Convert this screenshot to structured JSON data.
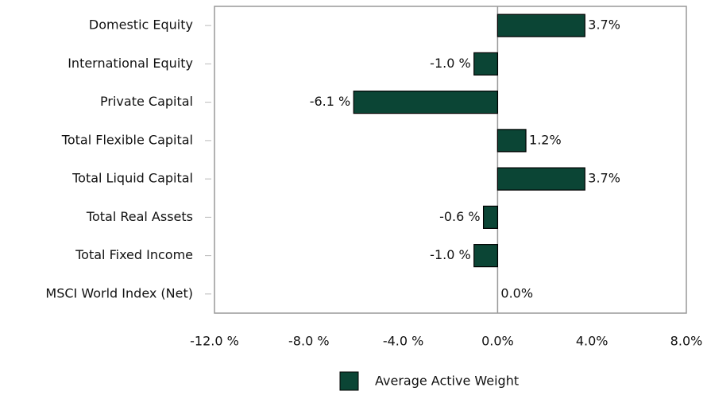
{
  "chart_data": {
    "type": "bar",
    "orientation": "horizontal",
    "categories": [
      "Domestic Equity",
      "International Equity",
      "Private Capital",
      "Total Flexible Capital",
      "Total Liquid Capital",
      "Total Real Assets",
      "Total Fixed Income",
      "MSCI World Index (Net)"
    ],
    "series": [
      {
        "name": "Average Active Weight",
        "color": "#0b4535",
        "values": [
          3.7,
          -1.0,
          -6.1,
          1.2,
          3.7,
          -0.6,
          -1.0,
          0.0
        ],
        "value_labels": [
          "3.7%",
          "-1.0 %",
          "-6.1 %",
          "1.2%",
          "3.7%",
          "-0.6 %",
          "-1.0 %",
          "0.0%"
        ]
      }
    ],
    "xlim": [
      -12,
      8
    ],
    "xticks": [
      {
        "value": -12,
        "label": "-12.0 %"
      },
      {
        "value": -8,
        "label": "-8.0 %"
      },
      {
        "value": -4,
        "label": "-4.0 %"
      },
      {
        "value": 0,
        "label": "0.0%"
      },
      {
        "value": 4,
        "label": "4.0%"
      },
      {
        "value": 8,
        "label": "8.0%"
      }
    ],
    "legend": "bottom"
  }
}
